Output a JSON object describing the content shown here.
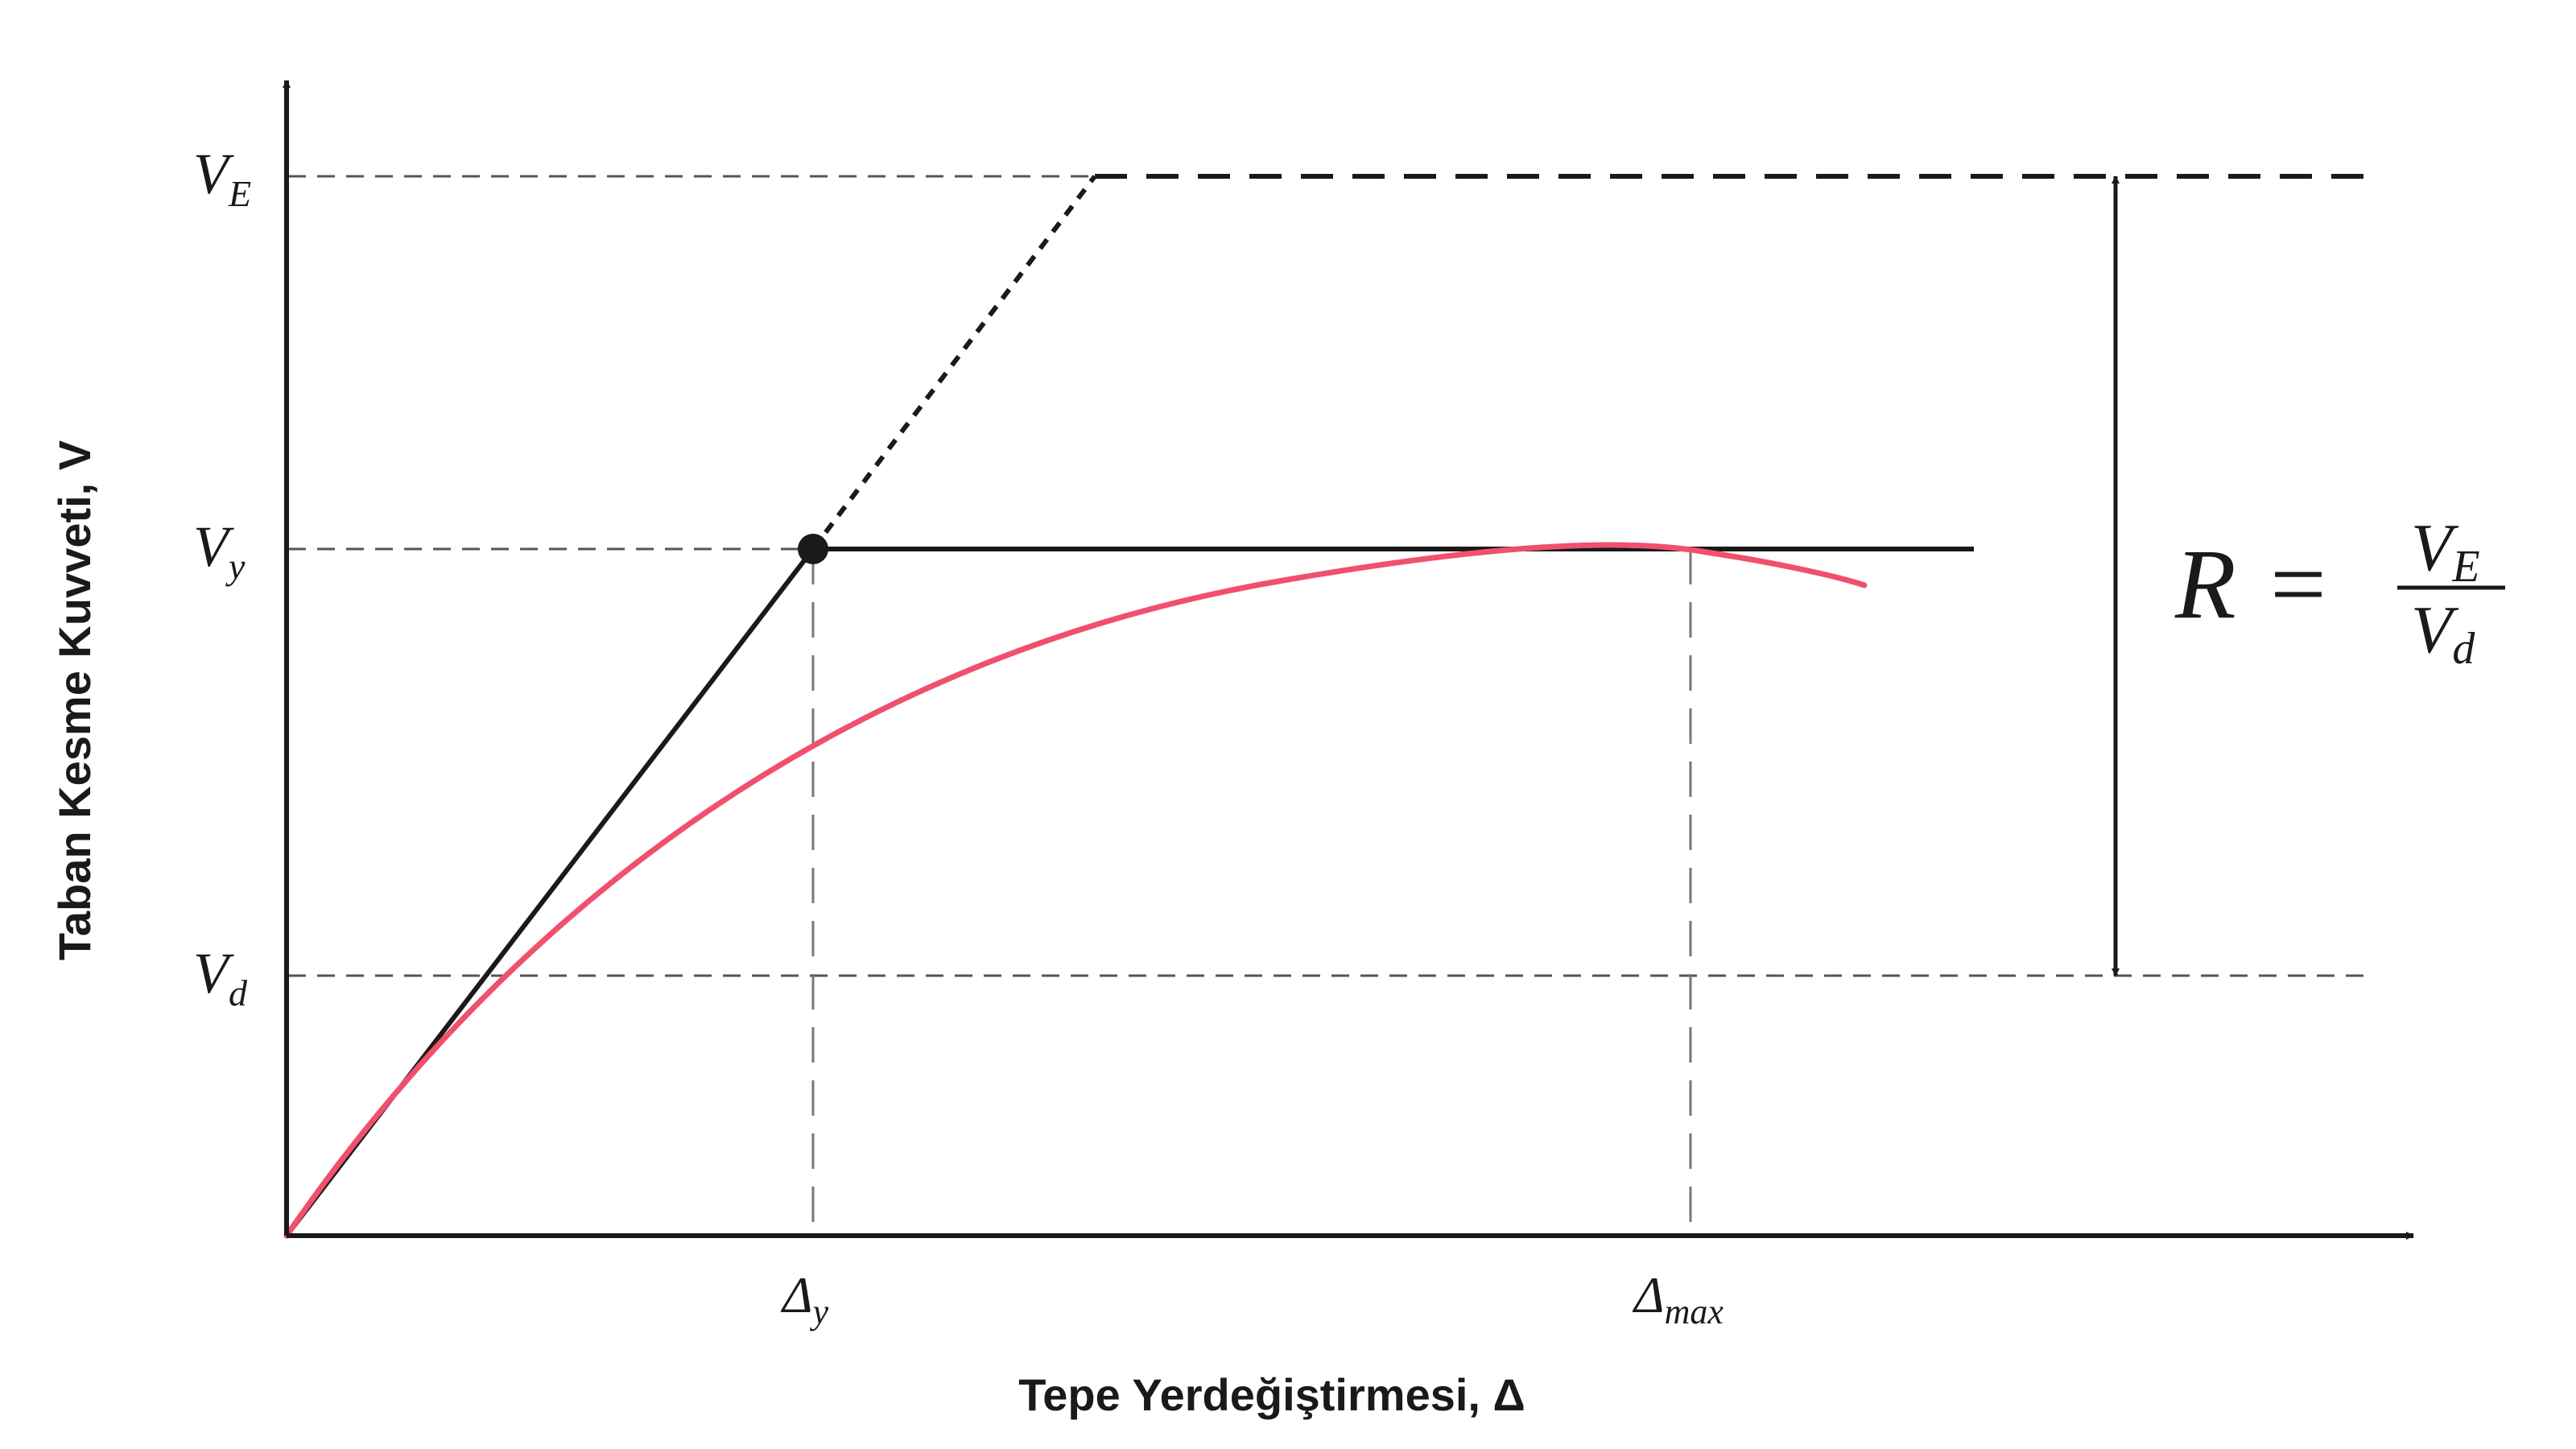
{
  "axes": {
    "x_title": "Tepe Yerdeğiştirmesi, Δ",
    "y_title": "Taban Kesme Kuvveti, V"
  },
  "y_levels": [
    {
      "id": "VE",
      "base": "V",
      "sub": "E"
    },
    {
      "id": "Vy",
      "base": "V",
      "sub": "y"
    },
    {
      "id": "Vd",
      "base": "V",
      "sub": "d"
    }
  ],
  "x_levels": [
    {
      "id": "dy",
      "base": "Δ",
      "sub": "y"
    },
    {
      "id": "dmax",
      "base": "Δ",
      "sub": "max"
    }
  ],
  "formula": {
    "lhs": "R",
    "equals": "=",
    "num_base": "V",
    "num_sub": "E",
    "den_base": "V",
    "den_sub": "d"
  },
  "colors": {
    "ink": "#1a1a1a",
    "capacity_curve": "#f0506e",
    "guide": "#555555"
  }
}
